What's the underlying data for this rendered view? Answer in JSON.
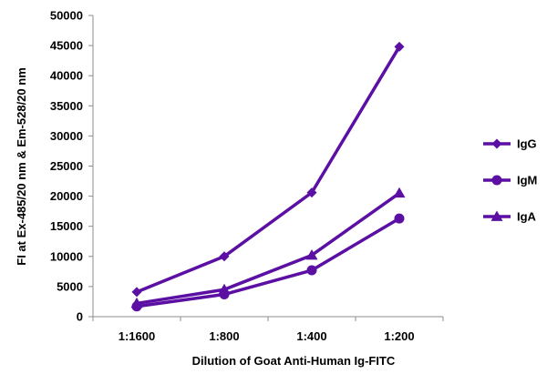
{
  "chart_data": {
    "type": "line",
    "title": "",
    "xlabel": "Dilution of Goat Anti-Human Ig-FITC",
    "ylabel": "FI at Ex-485/20 nm & Em-528/20 nm",
    "categories": [
      "1:1600",
      "1:800",
      "1:400",
      "1:200"
    ],
    "ylim": [
      0,
      50000
    ],
    "yticks": [
      0,
      5000,
      10000,
      15000,
      20000,
      25000,
      30000,
      35000,
      40000,
      45000,
      50000
    ],
    "grid": "off",
    "legend_position": "right",
    "series": [
      {
        "name": "IgG",
        "marker": "diamond",
        "color": "#5b0fa3",
        "values": [
          4100,
          10000,
          20600,
          44800
        ]
      },
      {
        "name": "IgM",
        "marker": "circle",
        "color": "#5b0fa3",
        "values": [
          1700,
          3700,
          7700,
          16300
        ]
      },
      {
        "name": "IgA",
        "marker": "triangle",
        "color": "#5b0fa3",
        "values": [
          2200,
          4500,
          10200,
          20500
        ]
      }
    ]
  }
}
